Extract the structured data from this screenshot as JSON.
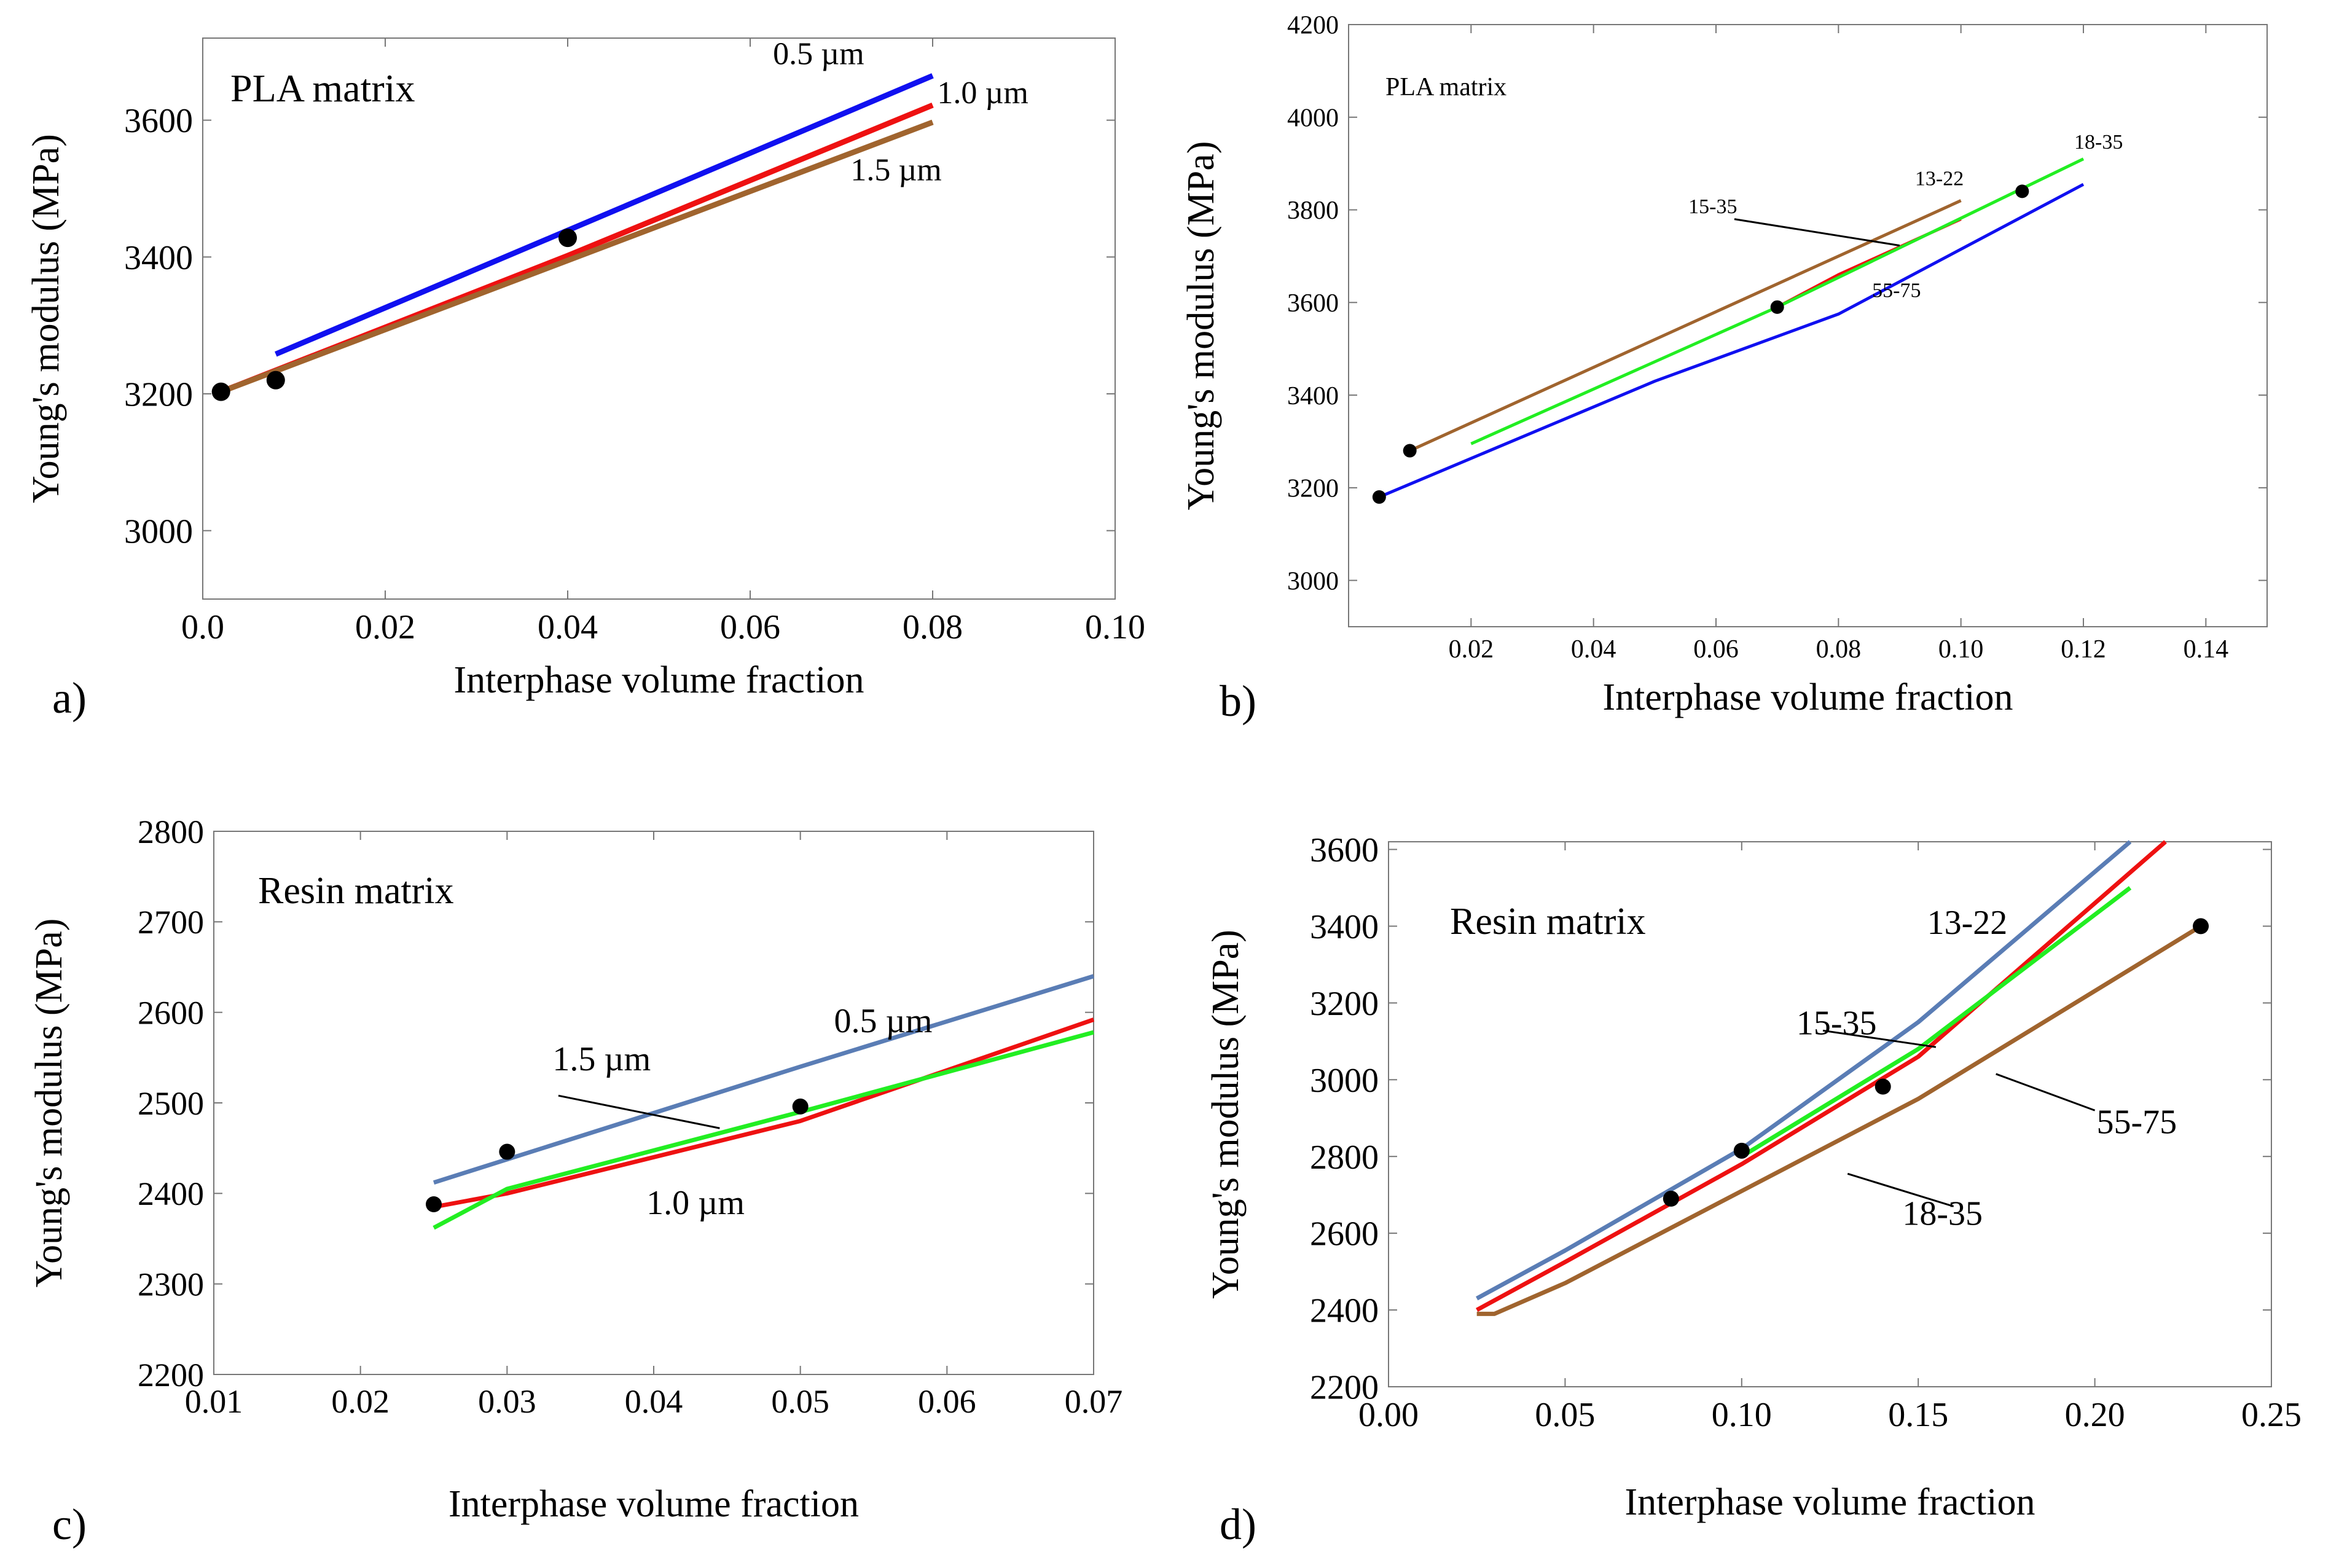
{
  "colors": {
    "blue": "#1010f0",
    "red": "#ee1111",
    "brown": "#a0642e",
    "green": "#22ee22",
    "steel": "#5a7db5",
    "marker": "#000000",
    "axis": "#777777"
  },
  "chart_data": [
    {
      "id": "a",
      "type": "line",
      "panel_label": "a)",
      "title": "",
      "annotation": "PLA matrix",
      "xlabel": "Interphase volume fraction",
      "ylabel": "Young's modulus (MPa)",
      "xlim": [
        0,
        0.1
      ],
      "ylim": [
        2900,
        3720
      ],
      "xticks": [
        0,
        0.02,
        0.04,
        0.06,
        0.08,
        0.1
      ],
      "xtick_labels": [
        "0.0",
        "0.02",
        "0.04",
        "0.06",
        "0.08",
        "0.10"
      ],
      "yticks": [
        3000,
        3200,
        3400,
        3600
      ],
      "ytick_labels": [
        "3000",
        "3200",
        "3400",
        "3600"
      ],
      "series": [
        {
          "name": "0.5 µm",
          "color": "blue",
          "x": [
            0.008,
            0.08
          ],
          "y": [
            3258,
            3665
          ]
        },
        {
          "name": "1.0 µm",
          "color": "red",
          "x": [
            0.002,
            0.04,
            0.08
          ],
          "y": [
            3203,
            3402,
            3622
          ]
        },
        {
          "name": "1.5 µm",
          "color": "brown",
          "x": [
            0.002,
            0.08
          ],
          "y": [
            3203,
            3597
          ]
        }
      ],
      "points": [
        {
          "x": 0.002,
          "y": 3203
        },
        {
          "x": 0.008,
          "y": 3220
        },
        {
          "x": 0.04,
          "y": 3428
        }
      ],
      "labels": [
        {
          "text": "0.5 µm",
          "x": 0.0625,
          "y": 3682
        },
        {
          "text": "1.0 µm",
          "x": 0.0805,
          "y": 3625
        },
        {
          "text": "1.5 µm",
          "x": 0.071,
          "y": 3512
        }
      ],
      "leaders": []
    },
    {
      "id": "b",
      "type": "line",
      "panel_label": "b)",
      "title": "",
      "annotation": "PLA matrix",
      "xlabel": "Interphase volume fraction",
      "ylabel": "Young's modulus (MPa)",
      "xlim": [
        0,
        0.15
      ],
      "ylim": [
        2900,
        4200
      ],
      "xticks": [
        0.02,
        0.04,
        0.06,
        0.08,
        0.1,
        0.12,
        0.14
      ],
      "xtick_labels": [
        "0.02",
        "0.04",
        "0.06",
        "0.08",
        "0.10",
        "0.12",
        "0.14"
      ],
      "yticks": [
        3000,
        3200,
        3400,
        3600,
        3800,
        4000,
        4200
      ],
      "ytick_labels": [
        "3000",
        "3200",
        "3400",
        "3600",
        "3800",
        "4000",
        "4200"
      ],
      "series": [
        {
          "name": "13-22",
          "color": "brown",
          "x": [
            0.01,
            0.1
          ],
          "y": [
            3280,
            3820
          ]
        },
        {
          "name": "15-35",
          "color": "red",
          "x": [
            0.07,
            0.08,
            0.1
          ],
          "y": [
            3590,
            3660,
            3780
          ]
        },
        {
          "name": "18-35",
          "color": "green",
          "x": [
            0.02,
            0.07,
            0.12
          ],
          "y": [
            3295,
            3590,
            3910
          ]
        },
        {
          "name": "55-75",
          "color": "blue",
          "x": [
            0.005,
            0.05,
            0.08,
            0.12
          ],
          "y": [
            3180,
            3430,
            3575,
            3855
          ]
        }
      ],
      "points": [
        {
          "x": 0.005,
          "y": 3180
        },
        {
          "x": 0.01,
          "y": 3280
        },
        {
          "x": 0.07,
          "y": 3590
        },
        {
          "x": 0.11,
          "y": 3840
        }
      ],
      "labels": [
        {
          "text": "13-22",
          "x": 0.0925,
          "y": 3853
        },
        {
          "text": "15-35",
          "x": 0.0555,
          "y": 3793
        },
        {
          "text": "18-35",
          "x": 0.1185,
          "y": 3932
        },
        {
          "text": "55-75",
          "x": 0.0855,
          "y": 3612
        }
      ],
      "leaders": [
        {
          "x1": 0.063,
          "y1": 3780,
          "x2": 0.09,
          "y2": 3723
        }
      ]
    },
    {
      "id": "c",
      "type": "line",
      "panel_label": "c)",
      "title": "",
      "annotation": "Resin matrix",
      "xlabel": "Interphase volume fraction",
      "ylabel": "Young's modulus (MPa)",
      "xlim": [
        0.01,
        0.07
      ],
      "ylim": [
        2200,
        2800
      ],
      "xticks": [
        0.01,
        0.02,
        0.03,
        0.04,
        0.05,
        0.06,
        0.07
      ],
      "xtick_labels": [
        "0.01",
        "0.02",
        "0.03",
        "0.04",
        "0.05",
        "0.06",
        "0.07"
      ],
      "yticks": [
        2200,
        2300,
        2400,
        2500,
        2600,
        2700,
        2800
      ],
      "ytick_labels": [
        "2200",
        "2300",
        "2400",
        "2500",
        "2600",
        "2700",
        "2800"
      ],
      "series": [
        {
          "name": "0.5 µm",
          "color": "steel",
          "x": [
            0.025,
            0.05,
            0.07
          ],
          "y": [
            2412,
            2540,
            2640
          ]
        },
        {
          "name": "1.0 µm",
          "color": "red",
          "x": [
            0.025,
            0.03,
            0.05,
            0.07
          ],
          "y": [
            2385,
            2400,
            2480,
            2592
          ]
        },
        {
          "name": "1.5 µm",
          "color": "green",
          "x": [
            0.025,
            0.03,
            0.05,
            0.07
          ],
          "y": [
            2362,
            2405,
            2490,
            2578
          ]
        }
      ],
      "points": [
        {
          "x": 0.025,
          "y": 2388
        },
        {
          "x": 0.03,
          "y": 2446
        },
        {
          "x": 0.05,
          "y": 2496
        }
      ],
      "labels": [
        {
          "text": "0.5 µm",
          "x": 0.0523,
          "y": 2578
        },
        {
          "text": "1.5 µm",
          "x": 0.0331,
          "y": 2536
        },
        {
          "text": "1.0 µm",
          "x": 0.0395,
          "y": 2377
        }
      ],
      "leaders": [
        {
          "x1": 0.0335,
          "y1": 2508,
          "x2": 0.0445,
          "y2": 2472
        }
      ]
    },
    {
      "id": "d",
      "type": "line",
      "panel_label": "d)",
      "title": "",
      "annotation": "Resin matrix",
      "xlabel": "Interphase volume fraction",
      "ylabel": "Young's modulus (MPa)",
      "xlim": [
        0,
        0.25
      ],
      "ylim": [
        2200,
        3620
      ],
      "xticks": [
        0,
        0.05,
        0.1,
        0.15,
        0.2,
        0.25
      ],
      "xtick_labels": [
        "0.00",
        "0.05",
        "0.10",
        "0.15",
        "0.20",
        "0.25"
      ],
      "yticks": [
        2200,
        2400,
        2600,
        2800,
        3000,
        3200,
        3400,
        3600
      ],
      "ytick_labels": [
        "2200",
        "2400",
        "2600",
        "2800",
        "3000",
        "3200",
        "3400",
        "3600"
      ],
      "series": [
        {
          "name": "13-22",
          "color": "steel",
          "x": [
            0.025,
            0.05,
            0.1,
            0.15,
            0.21
          ],
          "y": [
            2430,
            2555,
            2820,
            3150,
            3620
          ]
        },
        {
          "name": "15-35",
          "color": "red",
          "x": [
            0.025,
            0.05,
            0.1,
            0.15,
            0.22
          ],
          "y": [
            2400,
            2525,
            2780,
            3060,
            3620
          ]
        },
        {
          "name": "18-35",
          "color": "green",
          "x": [
            0.1,
            0.15,
            0.21
          ],
          "y": [
            2800,
            3080,
            3500
          ]
        },
        {
          "name": "55-75",
          "color": "brown",
          "x": [
            0.025,
            0.03,
            0.05,
            0.1,
            0.15,
            0.23
          ],
          "y": [
            2390,
            2390,
            2470,
            2710,
            2950,
            3400
          ]
        }
      ],
      "points": [
        {
          "x": 0.08,
          "y": 2690
        },
        {
          "x": 0.1,
          "y": 2815
        },
        {
          "x": 0.14,
          "y": 2982
        },
        {
          "x": 0.23,
          "y": 3400
        }
      ],
      "labels": [
        {
          "text": "13-22",
          "x": 0.1525,
          "y": 3380
        },
        {
          "text": "15-35",
          "x": 0.1155,
          "y": 3118
        },
        {
          "text": "18-35",
          "x": 0.1455,
          "y": 2622
        },
        {
          "text": "55-75",
          "x": 0.2005,
          "y": 2860
        }
      ],
      "leaders": [
        {
          "x1": 0.123,
          "y1": 3128,
          "x2": 0.155,
          "y2": 3085
        },
        {
          "x1": 0.13,
          "y1": 2755,
          "x2": 0.16,
          "y2": 2670
        },
        {
          "x1": 0.172,
          "y1": 3015,
          "x2": 0.2,
          "y2": 2920
        }
      ]
    }
  ]
}
